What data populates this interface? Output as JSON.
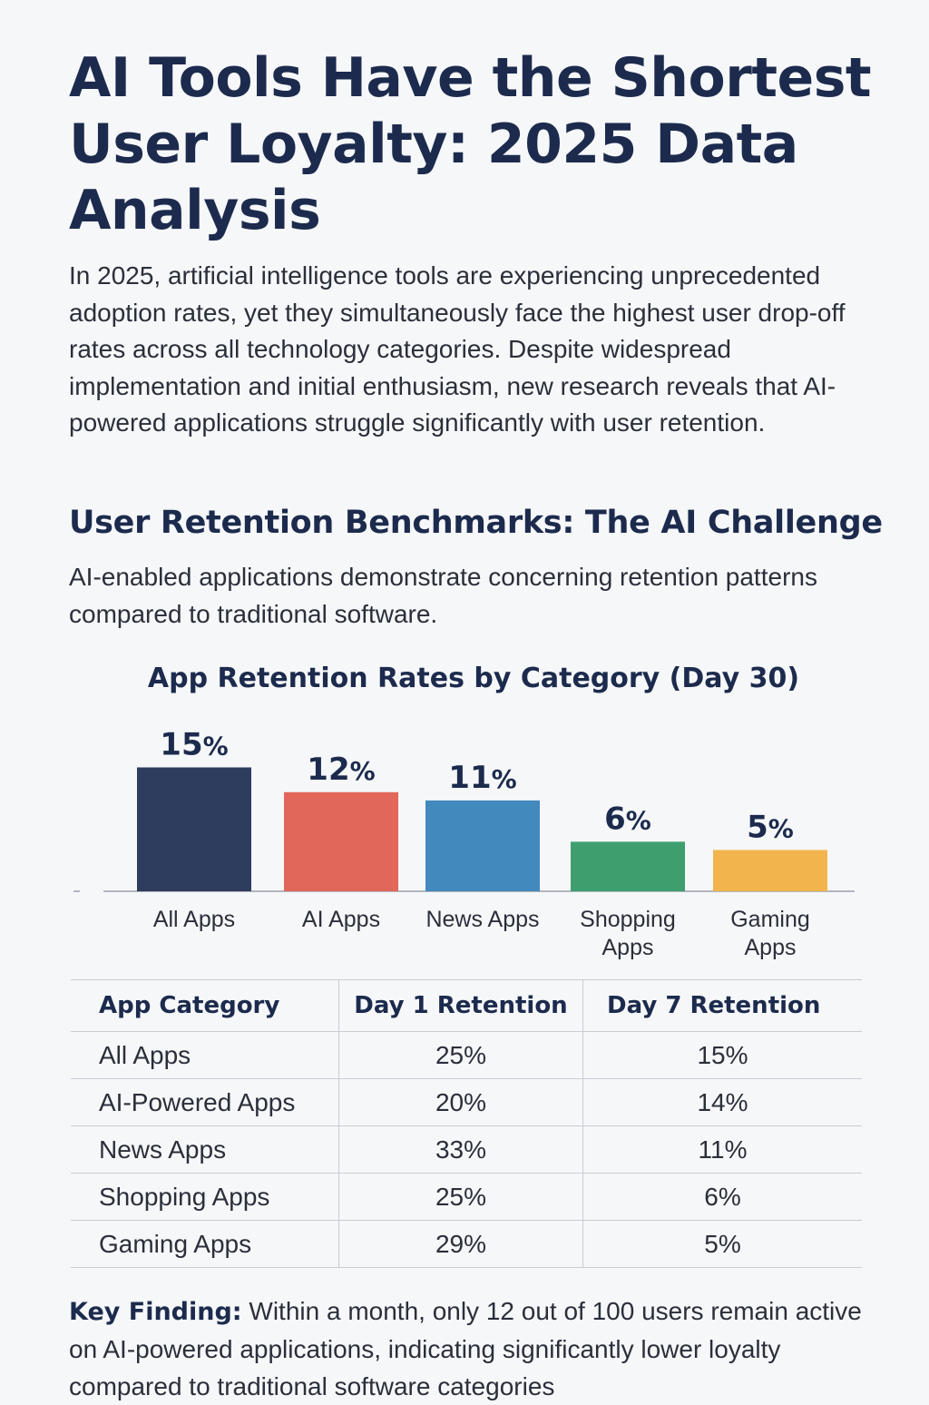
{
  "article": {
    "title": "AI Tools Have the Shortest User Loyalty: 2025 Data Analysis",
    "intro": "In 2025, artificial intelligence tools are experiencing unprecedented adoption rates, yet they simultaneously face the highest user drop-off rates across all technology categories. Despite widespread implementation and initial enthusiasm, new research reveals that AI-powered applications struggle significantly with user retention.",
    "section_heading": "User Retention Benchmarks: The AI Challenge",
    "section_text": "AI-enabled applications demonstrate concerning retention patterns compared to traditional software.",
    "key_finding_label": "Key Finding:",
    "key_finding_text": "Within a month, only 12 out of 100 users remain active on AI-powered applications, indicating significantly lower loyalty compared to traditional software categories"
  },
  "chart_data": {
    "type": "bar",
    "title": "App Retention Rates by Category (Day 30)",
    "categories": [
      "All Apps",
      "AI Apps",
      "News Apps",
      "Shopping Apps",
      "Gaming Apps"
    ],
    "values": [
      15,
      12,
      11,
      6,
      5
    ],
    "value_suffix": "%",
    "colors": [
      "#2e3d5e",
      "#e0675a",
      "#4289bd",
      "#3f9e6d",
      "#f2b54e"
    ],
    "xlabel": "",
    "ylabel": "",
    "grid": false,
    "legend": "none"
  },
  "table": {
    "headers": [
      "App Category",
      "Day 1 Retention",
      "Day 7 Retention"
    ],
    "rows": [
      [
        "All Apps",
        "25%",
        "15%"
      ],
      [
        "AI-Powered Apps",
        "20%",
        "14%"
      ],
      [
        "News Apps",
        "33%",
        "11%"
      ],
      [
        "Shopping Apps",
        "25%",
        "6%"
      ],
      [
        "Gaming Apps",
        "29%",
        "5%"
      ]
    ]
  }
}
